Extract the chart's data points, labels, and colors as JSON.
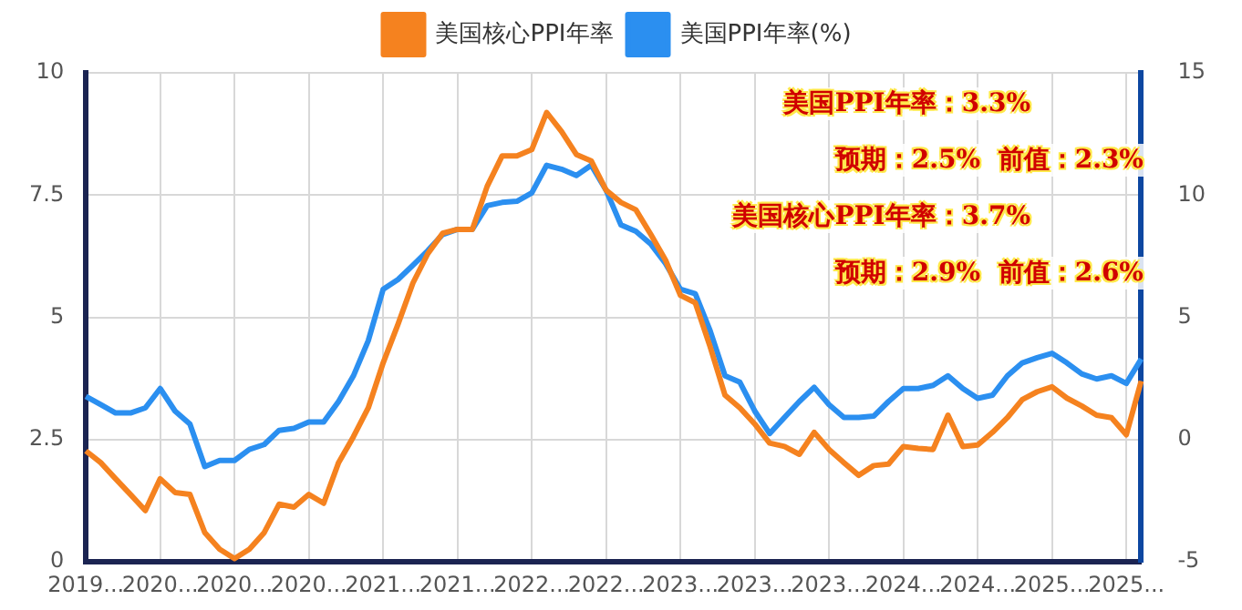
{
  "chart_data": {
    "type": "line",
    "categories": [
      "2019...",
      null,
      null,
      null,
      null,
      "2020...",
      null,
      null,
      null,
      null,
      "2020...",
      null,
      null,
      null,
      null,
      "2020...",
      null,
      null,
      null,
      null,
      "2021...",
      null,
      null,
      null,
      null,
      "2021...",
      null,
      null,
      null,
      null,
      "2022...",
      null,
      null,
      null,
      null,
      "2022...",
      null,
      null,
      null,
      null,
      "2023...",
      null,
      null,
      null,
      null,
      "2023...",
      null,
      null,
      null,
      null,
      "2023...",
      null,
      null,
      null,
      null,
      "2024...",
      null,
      null,
      null,
      null,
      "2024...",
      null,
      null,
      null,
      null,
      "2025...",
      null,
      null,
      null,
      null,
      "2025...",
      null
    ],
    "series": [
      {
        "name": "美国核心PPI年率",
        "color": "#f5821f",
        "values": [
          2.27,
          2.03,
          1.7,
          1.38,
          1.05,
          1.7,
          1.42,
          1.38,
          0.6,
          0.26,
          0.07,
          0.26,
          0.6,
          1.18,
          1.12,
          1.38,
          1.2,
          2.03,
          2.56,
          3.15,
          4.07,
          4.86,
          5.7,
          6.3,
          6.72,
          6.8,
          6.8,
          7.68,
          8.3,
          8.3,
          8.43,
          9.19,
          8.8,
          8.33,
          8.2,
          7.6,
          7.35,
          7.2,
          6.7,
          6.17,
          5.45,
          5.3,
          4.4,
          3.41,
          3.15,
          2.82,
          2.43,
          2.36,
          2.2,
          2.65,
          2.3,
          2.03,
          1.77,
          1.97,
          2.0,
          2.36,
          2.32,
          2.3,
          3.0,
          2.36,
          2.39,
          2.65,
          2.95,
          3.32,
          3.48,
          3.58,
          3.35,
          3.19,
          3.0,
          2.95,
          2.6,
          3.7
        ]
      },
      {
        "name": "美国PPI年率(%)",
        "color": "#2b8ff0",
        "axis": "y2",
        "values": [
          1.77,
          1.43,
          1.09,
          1.09,
          1.3,
          2.09,
          1.17,
          0.64,
          -1.1,
          -0.85,
          -0.85,
          -0.4,
          -0.2,
          0.38,
          0.46,
          0.72,
          0.72,
          1.56,
          2.61,
          4.05,
          6.15,
          6.55,
          7.13,
          7.73,
          8.39,
          8.6,
          8.6,
          9.57,
          9.7,
          9.75,
          10.09,
          11.22,
          11.06,
          10.8,
          11.22,
          10.2,
          8.78,
          8.52,
          8.0,
          7.2,
          6.15,
          5.97,
          4.45,
          2.61,
          2.35,
          1.17,
          0.25,
          0.91,
          1.56,
          2.14,
          1.43,
          0.91,
          0.91,
          0.96,
          1.56,
          2.09,
          2.09,
          2.22,
          2.61,
          2.09,
          1.69,
          1.82,
          2.61,
          3.14,
          3.35,
          3.53,
          3.14,
          2.69,
          2.48,
          2.61,
          2.3,
          3.3
        ]
      }
    ],
    "ylim": [
      0,
      10
    ],
    "yticks": [
      0,
      2.5,
      5,
      7.5,
      10
    ],
    "y2lim": [
      -5,
      15
    ],
    "y2ticks": [
      -5,
      0,
      5,
      10,
      15
    ],
    "annotations": [
      "美国PPI年率：3.3%",
      "预期：2.5%  前值：2.3%",
      "美国核心PPI年率：3.7%",
      "预期：2.9%  前值：2.6%"
    ],
    "grid": true,
    "legend": "top",
    "marker": "none",
    "line_style": "solid"
  }
}
